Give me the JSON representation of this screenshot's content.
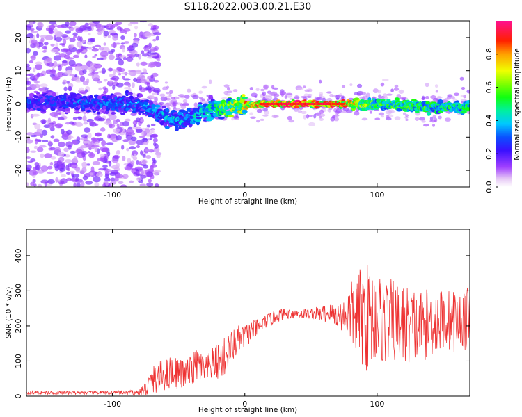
{
  "title": "S118.2022.003.00.21.E30",
  "chart_data": [
    {
      "type": "heatmap",
      "xlabel": "Height of straight line (km)",
      "ylabel": "Frequency (Hz)",
      "xlim": [
        -165,
        170
      ],
      "ylim": [
        -25,
        25
      ],
      "xticks": [
        -100,
        0,
        100
      ],
      "yticks": [
        -20,
        -10,
        0,
        10,
        20
      ],
      "colorbar": {
        "label": "Normalized spectral amplitude",
        "ticks": [
          0.0,
          0.2,
          0.4,
          0.6,
          0.8
        ],
        "range": [
          0,
          1
        ],
        "colormap": "rainbow-white-purple-blue-cyan-green-yellow-orange-red-pink"
      },
      "ridge": [
        {
          "x": -160,
          "f": 0.5,
          "amp": 0.3
        },
        {
          "x": -80,
          "f": 0,
          "amp": 0.35
        },
        {
          "x": -60,
          "f": -4,
          "amp": 0.4
        },
        {
          "x": -45,
          "f": -5,
          "amp": 0.4
        },
        {
          "x": -30,
          "f": -2,
          "amp": 0.45
        },
        {
          "x": -10,
          "f": -1,
          "amp": 0.7
        },
        {
          "x": 10,
          "f": 0,
          "amp": 0.85
        },
        {
          "x": 40,
          "f": 0,
          "amp": 0.95
        },
        {
          "x": 70,
          "f": 0,
          "amp": 0.9
        },
        {
          "x": 100,
          "f": 0,
          "amp": 0.55
        },
        {
          "x": 130,
          "f": -1,
          "amp": 0.55
        },
        {
          "x": 165,
          "f": -1,
          "amp": 0.5
        }
      ]
    },
    {
      "type": "line",
      "xlabel": "Height of straight line (km)",
      "ylabel": "SNR (10 * v/v)",
      "xlim": [
        -165,
        170
      ],
      "ylim": [
        0,
        475
      ],
      "xticks": [
        -100,
        0,
        100
      ],
      "yticks": [
        0,
        100,
        200,
        300,
        400
      ],
      "color": "#ee3333",
      "series": [
        {
          "x": [
            -165,
            -140,
            -120,
            -100,
            -80,
            -75,
            -70,
            -65,
            -60,
            -55,
            -50,
            -45,
            -40,
            -35,
            -30,
            -25,
            -20,
            -15,
            -10,
            -5,
            0,
            5,
            10,
            15,
            20,
            25,
            30,
            35,
            40,
            45,
            50,
            55,
            60,
            65,
            70,
            75,
            80,
            85,
            90,
            95,
            100,
            105,
            110,
            115,
            120,
            125,
            130,
            135,
            140,
            145,
            150,
            155,
            160,
            165,
            170
          ],
          "values": [
            10,
            10,
            10,
            10,
            10,
            20,
            45,
            55,
            60,
            70,
            65,
            60,
            75,
            90,
            70,
            90,
            100,
            110,
            140,
            160,
            170,
            185,
            195,
            210,
            220,
            230,
            235,
            235,
            235,
            235,
            235,
            235,
            235,
            235,
            230,
            230,
            235,
            230,
            230,
            225,
            225,
            215,
            215,
            210,
            200,
            205,
            200,
            200,
            210,
            215,
            215,
            215,
            215,
            220,
            220
          ],
          "spread": [
            5,
            5,
            5,
            5,
            8,
            25,
            40,
            45,
            45,
            50,
            45,
            40,
            45,
            55,
            40,
            45,
            55,
            60,
            50,
            40,
            35,
            30,
            25,
            20,
            20,
            20,
            15,
            15,
            15,
            15,
            15,
            20,
            25,
            30,
            35,
            50,
            90,
            120,
            160,
            150,
            130,
            130,
            120,
            120,
            120,
            110,
            110,
            100,
            100,
            100,
            90,
            90,
            90,
            90,
            90
          ]
        }
      ]
    }
  ]
}
